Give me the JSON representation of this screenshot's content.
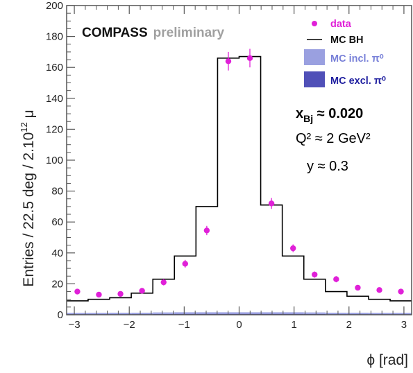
{
  "chart_data": {
    "type": "histogram",
    "x_axis": {
      "label": "ϕ [rad]",
      "range": [
        -3.14,
        3.14
      ],
      "ticks": [
        -3,
        -2,
        -1,
        0,
        1,
        2,
        3
      ],
      "tick_labels": [
        "−3",
        "−2",
        "−1",
        "0",
        "1",
        "2",
        "3"
      ]
    },
    "y_axis": {
      "label": "Entries / 22.5 deg / 2.10",
      "label_superscript": "12",
      "label_suffix": " μ",
      "range": [
        0,
        200
      ],
      "ticks": [
        0,
        20,
        40,
        60,
        80,
        100,
        120,
        140,
        160,
        180,
        200
      ],
      "tick_labels": [
        "0",
        "20",
        "40",
        "60",
        "80",
        "100",
        "120",
        "140",
        "160",
        "180",
        "200"
      ]
    },
    "bin_centers": [
      -2.945,
      -2.553,
      -2.16,
      -1.767,
      -1.374,
      -0.982,
      -0.589,
      -0.196,
      0.196,
      0.589,
      0.982,
      1.374,
      1.767,
      2.16,
      2.553,
      2.945
    ],
    "series": [
      {
        "name": "MC excl. π⁰",
        "style": "filled histogram",
        "color": "#5050b8",
        "values": [
          0.4,
          0.4,
          0.4,
          0.4,
          0.5,
          0.6,
          0.6,
          0.6,
          0.6,
          0.6,
          0.6,
          0.5,
          0.4,
          0.4,
          0.4,
          0.4
        ]
      },
      {
        "name": "MC incl. π⁰",
        "style": "filled histogram",
        "color": "#9aa0e0",
        "values": [
          0.8,
          0.8,
          0.9,
          0.9,
          1.0,
          1.0,
          1.0,
          1.0,
          1.0,
          1.0,
          1.0,
          1.0,
          0.9,
          0.9,
          0.8,
          0.8
        ]
      },
      {
        "name": "MC BH",
        "style": "line histogram",
        "color": "#000000",
        "values": [
          9,
          10,
          11,
          14,
          23,
          38,
          70,
          166,
          167,
          71,
          38,
          23,
          15,
          12,
          10,
          9
        ]
      },
      {
        "name": "data",
        "style": "points with error bars",
        "color": "#e020d8",
        "values": [
          15,
          13,
          13.5,
          15.5,
          21,
          33,
          54.5,
          164,
          166,
          72,
          43,
          26,
          23,
          17.5,
          16,
          15
        ],
        "errors": [
          1.5,
          1.5,
          1.5,
          1.5,
          2,
          2.5,
          3,
          6,
          6,
          3.5,
          2.5,
          2,
          2,
          1.5,
          1.5,
          1.5
        ]
      }
    ],
    "legend": {
      "position": "top-right",
      "entries": [
        "data",
        "MC BH",
        "MC incl. π⁰",
        "MC excl. π⁰"
      ]
    },
    "annotations": {
      "experiment": "COMPASS",
      "status": "preliminary",
      "xbj_label": "x",
      "xbj_sub": "Bj",
      "xbj_value": " ≈ 0.020",
      "q2_text": "Q² ≈ 2 GeV²",
      "y_text": "y ≈ 0.3"
    },
    "grid": false
  },
  "colors": {
    "data": "#e020d8",
    "bh_line": "#000000",
    "incl": "#9aa0e0",
    "excl": "#5050b8",
    "frame": "#555555",
    "brand_gray": "#a0a0a0"
  }
}
